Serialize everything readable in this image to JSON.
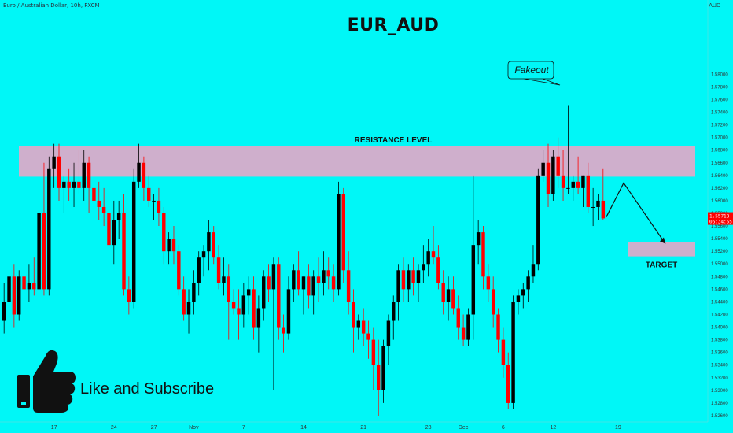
{
  "header": {
    "symbol_info": "Euro / Australian Dollar, 10h, FXCM",
    "title": "EUR_AUD",
    "axis_unit": "AUD"
  },
  "annotations": {
    "resistance_label": "RESISTANCE LEVEL",
    "fakeout_label": "Fakeout",
    "target_label": "TARGET",
    "cta_text": "Like and Subscribe"
  },
  "price_badge": {
    "price": "1.55718",
    "countdown": "06:34:55"
  },
  "colors": {
    "background": "#00f7f7",
    "bull_candle": "#000000",
    "bear_candle": "#ff0000",
    "resistance_zone": "#e6a6c6",
    "target_zone": "#e6a6c6",
    "price_badge": "#ff0000"
  },
  "icons": [
    "thumbs-up-icon",
    "arrow-path-icon"
  ],
  "chart_data": {
    "type": "candlestick",
    "title": "EUR_AUD",
    "y_unit": "AUD",
    "ylim": [
      1.5255,
      1.5905
    ],
    "y_ticks": [
      "1.52600",
      "1.52800",
      "1.53000",
      "1.53200",
      "1.53400",
      "1.53600",
      "1.53800",
      "1.54000",
      "1.54200",
      "1.54400",
      "1.54600",
      "1.54800",
      "1.55000",
      "1.55200",
      "1.55400",
      "1.55600",
      "1.55800",
      "1.56000",
      "1.56200",
      "1.56400",
      "1.56600",
      "1.56800",
      "1.57000",
      "1.57200",
      "1.57400",
      "1.57600",
      "1.57800",
      "1.58000"
    ],
    "x_ticks": [
      {
        "label": "17",
        "index": 10
      },
      {
        "label": "24",
        "index": 22
      },
      {
        "label": "27",
        "index": 30
      },
      {
        "label": "Nov",
        "index": 38
      },
      {
        "label": "7",
        "index": 48
      },
      {
        "label": "14",
        "index": 60
      },
      {
        "label": "21",
        "index": 72
      },
      {
        "label": "28",
        "index": 85
      },
      {
        "label": "Dec",
        "index": 92
      },
      {
        "label": "6",
        "index": 100
      },
      {
        "label": "12",
        "index": 110
      },
      {
        "label": "19",
        "index": 123
      }
    ],
    "grid": false,
    "resistance_zone": [
      1.5638,
      1.5686
    ],
    "target_zone": [
      1.5512,
      1.5535
    ],
    "last_price": 1.55718,
    "candles": [
      {
        "o": 1.541,
        "h": 1.547,
        "l": 1.539,
        "c": 1.544
      },
      {
        "o": 1.544,
        "h": 1.549,
        "l": 1.541,
        "c": 1.548
      },
      {
        "o": 1.548,
        "h": 1.55,
        "l": 1.54,
        "c": 1.542
      },
      {
        "o": 1.542,
        "h": 1.549,
        "l": 1.541,
        "c": 1.548
      },
      {
        "o": 1.548,
        "h": 1.55,
        "l": 1.544,
        "c": 1.546
      },
      {
        "o": 1.546,
        "h": 1.55,
        "l": 1.544,
        "c": 1.547
      },
      {
        "o": 1.547,
        "h": 1.551,
        "l": 1.545,
        "c": 1.546
      },
      {
        "o": 1.546,
        "h": 1.559,
        "l": 1.545,
        "c": 1.558
      },
      {
        "o": 1.558,
        "h": 1.566,
        "l": 1.545,
        "c": 1.546
      },
      {
        "o": 1.546,
        "h": 1.567,
        "l": 1.545,
        "c": 1.565
      },
      {
        "o": 1.565,
        "h": 1.569,
        "l": 1.562,
        "c": 1.567
      },
      {
        "o": 1.567,
        "h": 1.569,
        "l": 1.56,
        "c": 1.562
      },
      {
        "o": 1.562,
        "h": 1.564,
        "l": 1.558,
        "c": 1.563
      },
      {
        "o": 1.563,
        "h": 1.565,
        "l": 1.56,
        "c": 1.562
      },
      {
        "o": 1.562,
        "h": 1.566,
        "l": 1.559,
        "c": 1.563
      },
      {
        "o": 1.563,
        "h": 1.568,
        "l": 1.561,
        "c": 1.562
      },
      {
        "o": 1.562,
        "h": 1.568,
        "l": 1.56,
        "c": 1.566
      },
      {
        "o": 1.566,
        "h": 1.567,
        "l": 1.558,
        "c": 1.562
      },
      {
        "o": 1.562,
        "h": 1.564,
        "l": 1.558,
        "c": 1.56
      },
      {
        "o": 1.56,
        "h": 1.563,
        "l": 1.557,
        "c": 1.559
      },
      {
        "o": 1.559,
        "h": 1.562,
        "l": 1.556,
        "c": 1.558
      },
      {
        "o": 1.558,
        "h": 1.562,
        "l": 1.552,
        "c": 1.553
      },
      {
        "o": 1.553,
        "h": 1.56,
        "l": 1.55,
        "c": 1.557
      },
      {
        "o": 1.557,
        "h": 1.56,
        "l": 1.554,
        "c": 1.558
      },
      {
        "o": 1.558,
        "h": 1.561,
        "l": 1.545,
        "c": 1.546
      },
      {
        "o": 1.546,
        "h": 1.548,
        "l": 1.542,
        "c": 1.544
      },
      {
        "o": 1.544,
        "h": 1.565,
        "l": 1.543,
        "c": 1.563
      },
      {
        "o": 1.563,
        "h": 1.569,
        "l": 1.562,
        "c": 1.566
      },
      {
        "o": 1.566,
        "h": 1.567,
        "l": 1.56,
        "c": 1.562
      },
      {
        "o": 1.562,
        "h": 1.564,
        "l": 1.559,
        "c": 1.56
      },
      {
        "o": 1.56,
        "h": 1.561,
        "l": 1.557,
        "c": 1.56
      },
      {
        "o": 1.56,
        "h": 1.562,
        "l": 1.556,
        "c": 1.558
      },
      {
        "o": 1.558,
        "h": 1.559,
        "l": 1.55,
        "c": 1.552
      },
      {
        "o": 1.552,
        "h": 1.555,
        "l": 1.55,
        "c": 1.554
      },
      {
        "o": 1.554,
        "h": 1.556,
        "l": 1.55,
        "c": 1.552
      },
      {
        "o": 1.552,
        "h": 1.553,
        "l": 1.545,
        "c": 1.546
      },
      {
        "o": 1.546,
        "h": 1.548,
        "l": 1.541,
        "c": 1.542
      },
      {
        "o": 1.542,
        "h": 1.546,
        "l": 1.539,
        "c": 1.544
      },
      {
        "o": 1.544,
        "h": 1.549,
        "l": 1.542,
        "c": 1.547
      },
      {
        "o": 1.547,
        "h": 1.552,
        "l": 1.545,
        "c": 1.551
      },
      {
        "o": 1.551,
        "h": 1.553,
        "l": 1.548,
        "c": 1.552
      },
      {
        "o": 1.552,
        "h": 1.557,
        "l": 1.549,
        "c": 1.555
      },
      {
        "o": 1.555,
        "h": 1.556,
        "l": 1.55,
        "c": 1.551
      },
      {
        "o": 1.551,
        "h": 1.553,
        "l": 1.546,
        "c": 1.547
      },
      {
        "o": 1.547,
        "h": 1.551,
        "l": 1.545,
        "c": 1.548
      },
      {
        "o": 1.548,
        "h": 1.55,
        "l": 1.538,
        "c": 1.544
      },
      {
        "o": 1.544,
        "h": 1.546,
        "l": 1.542,
        "c": 1.543
      },
      {
        "o": 1.543,
        "h": 1.546,
        "l": 1.538,
        "c": 1.542
      },
      {
        "o": 1.542,
        "h": 1.547,
        "l": 1.54,
        "c": 1.545
      },
      {
        "o": 1.545,
        "h": 1.548,
        "l": 1.542,
        "c": 1.546
      },
      {
        "o": 1.546,
        "h": 1.548,
        "l": 1.538,
        "c": 1.54
      },
      {
        "o": 1.54,
        "h": 1.545,
        "l": 1.536,
        "c": 1.543
      },
      {
        "o": 1.543,
        "h": 1.549,
        "l": 1.541,
        "c": 1.548
      },
      {
        "o": 1.548,
        "h": 1.55,
        "l": 1.544,
        "c": 1.546
      },
      {
        "o": 1.546,
        "h": 1.551,
        "l": 1.53,
        "c": 1.55
      },
      {
        "o": 1.55,
        "h": 1.551,
        "l": 1.538,
        "c": 1.54
      },
      {
        "o": 1.54,
        "h": 1.542,
        "l": 1.536,
        "c": 1.539
      },
      {
        "o": 1.539,
        "h": 1.548,
        "l": 1.538,
        "c": 1.546
      },
      {
        "o": 1.546,
        "h": 1.55,
        "l": 1.544,
        "c": 1.549
      },
      {
        "o": 1.549,
        "h": 1.552,
        "l": 1.545,
        "c": 1.546
      },
      {
        "o": 1.546,
        "h": 1.548,
        "l": 1.542,
        "c": 1.548
      },
      {
        "o": 1.548,
        "h": 1.55,
        "l": 1.543,
        "c": 1.545
      },
      {
        "o": 1.545,
        "h": 1.549,
        "l": 1.542,
        "c": 1.548
      },
      {
        "o": 1.548,
        "h": 1.551,
        "l": 1.544,
        "c": 1.547
      },
      {
        "o": 1.547,
        "h": 1.552,
        "l": 1.545,
        "c": 1.549
      },
      {
        "o": 1.549,
        "h": 1.551,
        "l": 1.546,
        "c": 1.548
      },
      {
        "o": 1.548,
        "h": 1.55,
        "l": 1.544,
        "c": 1.546
      },
      {
        "o": 1.546,
        "h": 1.563,
        "l": 1.545,
        "c": 1.561
      },
      {
        "o": 1.561,
        "h": 1.562,
        "l": 1.547,
        "c": 1.549
      },
      {
        "o": 1.549,
        "h": 1.552,
        "l": 1.542,
        "c": 1.544
      },
      {
        "o": 1.544,
        "h": 1.546,
        "l": 1.536,
        "c": 1.54
      },
      {
        "o": 1.54,
        "h": 1.542,
        "l": 1.538,
        "c": 1.541
      },
      {
        "o": 1.541,
        "h": 1.543,
        "l": 1.537,
        "c": 1.539
      },
      {
        "o": 1.539,
        "h": 1.541,
        "l": 1.535,
        "c": 1.538
      },
      {
        "o": 1.538,
        "h": 1.54,
        "l": 1.53,
        "c": 1.534
      },
      {
        "o": 1.534,
        "h": 1.538,
        "l": 1.526,
        "c": 1.53
      },
      {
        "o": 1.53,
        "h": 1.538,
        "l": 1.528,
        "c": 1.537
      },
      {
        "o": 1.537,
        "h": 1.542,
        "l": 1.534,
        "c": 1.541
      },
      {
        "o": 1.541,
        "h": 1.545,
        "l": 1.538,
        "c": 1.544
      },
      {
        "o": 1.544,
        "h": 1.55,
        "l": 1.541,
        "c": 1.549
      },
      {
        "o": 1.549,
        "h": 1.551,
        "l": 1.544,
        "c": 1.546
      },
      {
        "o": 1.546,
        "h": 1.55,
        "l": 1.544,
        "c": 1.549
      },
      {
        "o": 1.549,
        "h": 1.551,
        "l": 1.545,
        "c": 1.547
      },
      {
        "o": 1.547,
        "h": 1.55,
        "l": 1.544,
        "c": 1.549
      },
      {
        "o": 1.549,
        "h": 1.553,
        "l": 1.547,
        "c": 1.55
      },
      {
        "o": 1.55,
        "h": 1.554,
        "l": 1.548,
        "c": 1.552
      },
      {
        "o": 1.552,
        "h": 1.556,
        "l": 1.55,
        "c": 1.551
      },
      {
        "o": 1.551,
        "h": 1.553,
        "l": 1.546,
        "c": 1.547
      },
      {
        "o": 1.547,
        "h": 1.549,
        "l": 1.542,
        "c": 1.544
      },
      {
        "o": 1.544,
        "h": 1.548,
        "l": 1.541,
        "c": 1.546
      },
      {
        "o": 1.546,
        "h": 1.548,
        "l": 1.542,
        "c": 1.543
      },
      {
        "o": 1.543,
        "h": 1.545,
        "l": 1.538,
        "c": 1.54
      },
      {
        "o": 1.54,
        "h": 1.542,
        "l": 1.537,
        "c": 1.538
      },
      {
        "o": 1.538,
        "h": 1.543,
        "l": 1.537,
        "c": 1.542
      },
      {
        "o": 1.542,
        "h": 1.564,
        "l": 1.538,
        "c": 1.553
      },
      {
        "o": 1.553,
        "h": 1.557,
        "l": 1.55,
        "c": 1.555
      },
      {
        "o": 1.555,
        "h": 1.556,
        "l": 1.546,
        "c": 1.548
      },
      {
        "o": 1.548,
        "h": 1.55,
        "l": 1.544,
        "c": 1.546
      },
      {
        "o": 1.546,
        "h": 1.548,
        "l": 1.54,
        "c": 1.542
      },
      {
        "o": 1.542,
        "h": 1.543,
        "l": 1.536,
        "c": 1.538
      },
      {
        "o": 1.538,
        "h": 1.54,
        "l": 1.532,
        "c": 1.534
      },
      {
        "o": 1.534,
        "h": 1.536,
        "l": 1.527,
        "c": 1.528
      },
      {
        "o": 1.528,
        "h": 1.545,
        "l": 1.527,
        "c": 1.544
      },
      {
        "o": 1.544,
        "h": 1.546,
        "l": 1.542,
        "c": 1.545
      },
      {
        "o": 1.545,
        "h": 1.547,
        "l": 1.543,
        "c": 1.546
      },
      {
        "o": 1.546,
        "h": 1.549,
        "l": 1.544,
        "c": 1.548
      },
      {
        "o": 1.548,
        "h": 1.553,
        "l": 1.547,
        "c": 1.55
      },
      {
        "o": 1.55,
        "h": 1.565,
        "l": 1.549,
        "c": 1.564
      },
      {
        "o": 1.564,
        "h": 1.568,
        "l": 1.563,
        "c": 1.566
      },
      {
        "o": 1.566,
        "h": 1.569,
        "l": 1.559,
        "c": 1.561
      },
      {
        "o": 1.561,
        "h": 1.568,
        "l": 1.56,
        "c": 1.567
      },
      {
        "o": 1.567,
        "h": 1.57,
        "l": 1.562,
        "c": 1.564
      },
      {
        "o": 1.564,
        "h": 1.568,
        "l": 1.56,
        "c": 1.562
      },
      {
        "o": 1.562,
        "h": 1.575,
        "l": 1.561,
        "c": 1.562
      },
      {
        "o": 1.562,
        "h": 1.564,
        "l": 1.56,
        "c": 1.563
      },
      {
        "o": 1.563,
        "h": 1.567,
        "l": 1.561,
        "c": 1.562
      },
      {
        "o": 1.562,
        "h": 1.564,
        "l": 1.559,
        "c": 1.564
      },
      {
        "o": 1.564,
        "h": 1.566,
        "l": 1.558,
        "c": 1.559
      },
      {
        "o": 1.559,
        "h": 1.562,
        "l": 1.556,
        "c": 1.559
      },
      {
        "o": 1.559,
        "h": 1.561,
        "l": 1.557,
        "c": 1.56
      },
      {
        "o": 1.56,
        "h": 1.565,
        "l": 1.557,
        "c": 1.5572
      }
    ]
  }
}
